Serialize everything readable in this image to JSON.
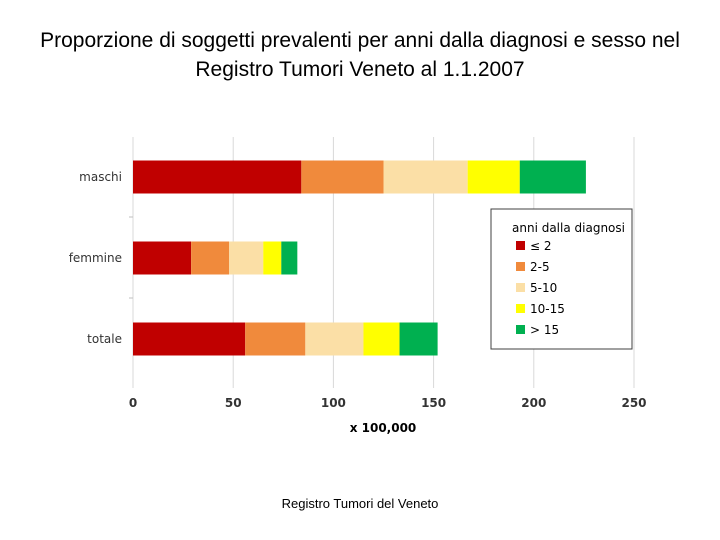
{
  "title": "Proporzione di soggetti prevalenti per anni dalla diagnosi e sesso nel Registro Tumori Veneto al 1.1.2007",
  "footer": "Registro Tumori del Veneto",
  "chart_data": {
    "type": "bar",
    "orientation": "horizontal",
    "stacked": true,
    "categories": [
      "maschi",
      "femmine",
      "totale"
    ],
    "series": [
      {
        "name": "≤ 2",
        "values": [
          84,
          29,
          56
        ],
        "color": "#c00000"
      },
      {
        "name": "2-5",
        "values": [
          41,
          19,
          30
        ],
        "color": "#f08a3c"
      },
      {
        "name": "5-10",
        "values": [
          42,
          17,
          29
        ],
        "color": "#fbdfa6"
      },
      {
        "name": "10-15",
        "values": [
          26,
          9,
          18
        ],
        "color": "#ffff00"
      },
      {
        "name": "> 15",
        "values": [
          33,
          8,
          19
        ],
        "color": "#00b050"
      }
    ],
    "xlabel": "x 100,000",
    "xlim": [
      0,
      250
    ],
    "xticks": [
      "0",
      "50",
      "100",
      "150",
      "200",
      "250"
    ],
    "legend_title": "anni dalla diagnosi",
    "legend_position": "right",
    "grid": true
  }
}
